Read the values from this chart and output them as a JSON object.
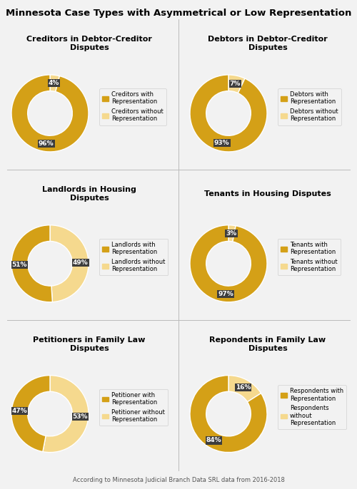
{
  "title": "Minnesota Case Types with Asymmetrical or Low Representation",
  "footnote": "According to Minnesota Judicial Branch Data SRL data from 2016-2018",
  "background_color": "#f2f2f2",
  "divider_color": "#bbbbbb",
  "color_with": "#D4A017",
  "color_without": "#F5D98E",
  "label_bg": "#3d3d3d",
  "label_fg": "#ffffff",
  "charts": [
    {
      "title": "Creditors in Debtor-Creditor\nDisputes",
      "with_pct": 96,
      "without_pct": 4,
      "legend_with": "Creditors with\nRepresentation",
      "legend_without": "Creditors without\nRepresentation"
    },
    {
      "title": "Debtors in Debtor-Creditor\nDisputes",
      "with_pct": 93,
      "without_pct": 7,
      "legend_with": "Debtors with\nRepresentation",
      "legend_without": "Debtors without\nRepresentation"
    },
    {
      "title": "Landlords in Housing\nDisputes",
      "with_pct": 51,
      "without_pct": 49,
      "legend_with": "Landlords with\nRepresentation",
      "legend_without": "Landlords without\nRepresentation"
    },
    {
      "title": "Tenants in Housing Disputes",
      "with_pct": 97,
      "without_pct": 3,
      "legend_with": "Tenants with\nRepresentation",
      "legend_without": "Tenants without\nRepresentation"
    },
    {
      "title": "Petitioners in Family Law\nDisputes",
      "with_pct": 47,
      "without_pct": 53,
      "legend_with": "Petitioner with\nRepresentation",
      "legend_without": "Petitioner without\nRepresentation"
    },
    {
      "title": "Repondents in Family Law\nDisputes",
      "with_pct": 84,
      "without_pct": 16,
      "legend_with": "Respondents with\nRepresentation",
      "legend_without": "Respondents\nwithout\nRepresentation"
    }
  ]
}
